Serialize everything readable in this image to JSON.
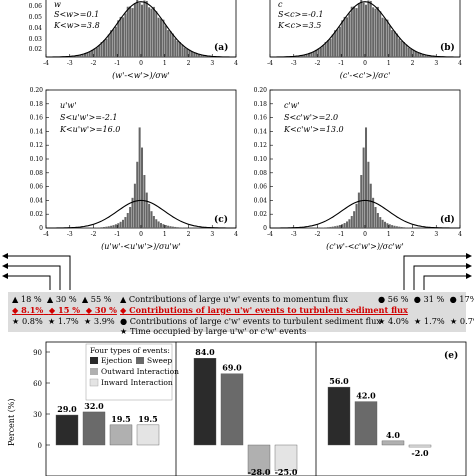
{
  "panels": [
    {
      "id": "a",
      "label": "(a)",
      "var_name": "w",
      "skew_label": "S<w>=0.1",
      "kurt_label": "K<w>=3.8",
      "xlabel": "(w'-<w'>)/σw'",
      "ytick_labels": [
        "0.06",
        "0.05",
        "0.04",
        "0.03",
        "0.02",
        "0.01",
        "0"
      ],
      "xtick_labels": [
        "-4",
        "-3",
        "-2",
        "-1",
        "0",
        "1",
        "2",
        "3",
        "4"
      ]
    },
    {
      "id": "b",
      "label": "(b)",
      "var_name": "c",
      "skew_label": "S<c>=-0.1",
      "kurt_label": "K<c>=3.5",
      "xlabel": "(c'-<c'>)/σc'",
      "ytick_labels": [
        "0.06",
        "0.05",
        "0.04",
        "0.03",
        "0.02",
        "0.01",
        "0"
      ],
      "xtick_labels": [
        "-4",
        "-3",
        "-2",
        "-1",
        "0",
        "1",
        "2",
        "3",
        "4"
      ]
    },
    {
      "id": "c",
      "label": "(c)",
      "var_name": "u'w'",
      "skew_label": "S<u'w'>=-2.1",
      "kurt_label": "K<u'w'>=16.0",
      "xlabel": "(u'w'-<u'w'>)/σu'w'",
      "ytick_labels": [
        "0.20",
        "0.18",
        "0.16",
        "0.14",
        "0.12",
        "0.10",
        "0.08",
        "0.06",
        "0.04",
        "0.02",
        "0"
      ],
      "xtick_labels": [
        "-4",
        "-3",
        "-2",
        "-1",
        "0",
        "1",
        "2",
        "3",
        "4"
      ]
    },
    {
      "id": "d",
      "label": "(d)",
      "var_name": "c'w'",
      "skew_label": "S<c'w'>=2.0",
      "kurt_label": "K<c'w'>=13.0",
      "xlabel": "(c'w'-<c'w'>)/σc'w'",
      "ytick_labels": [
        "0.20",
        "0.18",
        "0.16",
        "0.14",
        "0.12",
        "0.10",
        "0.08",
        "0.06",
        "0.04",
        "0.02",
        "0"
      ],
      "xtick_labels": [
        "-4",
        "-3",
        "-2",
        "-1",
        "0",
        "1",
        "2",
        "3",
        "4"
      ]
    }
  ],
  "legend": {
    "left_row1": [
      "▲ 18 %",
      "▲ 30 %",
      "▲ 55 %"
    ],
    "left_row2": [
      "◆ 8.1%",
      "◆ 15 %",
      "◆ 30 %"
    ],
    "left_row3": [
      "★ 0.8%",
      "★ 1.7%",
      "★ 3.9%"
    ],
    "right_row1": [
      "● 56 %",
      "● 31 %",
      "● 17%"
    ],
    "right_row3": [
      "★ 4.0%",
      "★ 1.7%",
      "★ 0.7%"
    ],
    "lines": [
      "▲ Contributions of large u'w' events to momentum flux",
      "◆ Contributions of large u'w' events to turbulent sediment flux",
      "● Contributions of large c'w' events to turbulent sediment flux",
      "★ Time occupied by large u'w' or c'w' events"
    ]
  },
  "bar_panel": {
    "ylabel": "Percent (%)",
    "ytick_labels": [
      "90",
      "60",
      "30",
      "0"
    ],
    "label": "(e)",
    "legend_title": "Four types of events:",
    "legend_items": [
      "Ejection",
      "Sweep",
      "Outward Interaction",
      "Inward Interaction"
    ],
    "colors": {
      "ejection": "#2b2b2b",
      "sweep": "#6a6a6a",
      "outward": "#b0b0b0",
      "inward": "#e4e4e4"
    }
  },
  "chart_data": {
    "type": "bar",
    "title": "",
    "ylabel": "Percent (%)",
    "ylim": [
      -30,
      90
    ],
    "categories": [
      "Ejection",
      "Sweep",
      "Outward Interaction",
      "Inward Interaction"
    ],
    "groups": [
      {
        "values": [
          29.0,
          32.0,
          19.5,
          19.5
        ],
        "labels": [
          "29.0",
          "32.0",
          "19.5",
          "19.5"
        ]
      },
      {
        "values": [
          84.0,
          69.0,
          -28.0,
          -25.0
        ],
        "labels": [
          "84.0",
          "69.0",
          "-28.0",
          "-25.0"
        ]
      },
      {
        "values": [
          56.0,
          42.0,
          4.0,
          -2.0
        ],
        "labels": [
          "56.0",
          "42.0",
          "4.0",
          "-2.0"
        ]
      }
    ]
  }
}
